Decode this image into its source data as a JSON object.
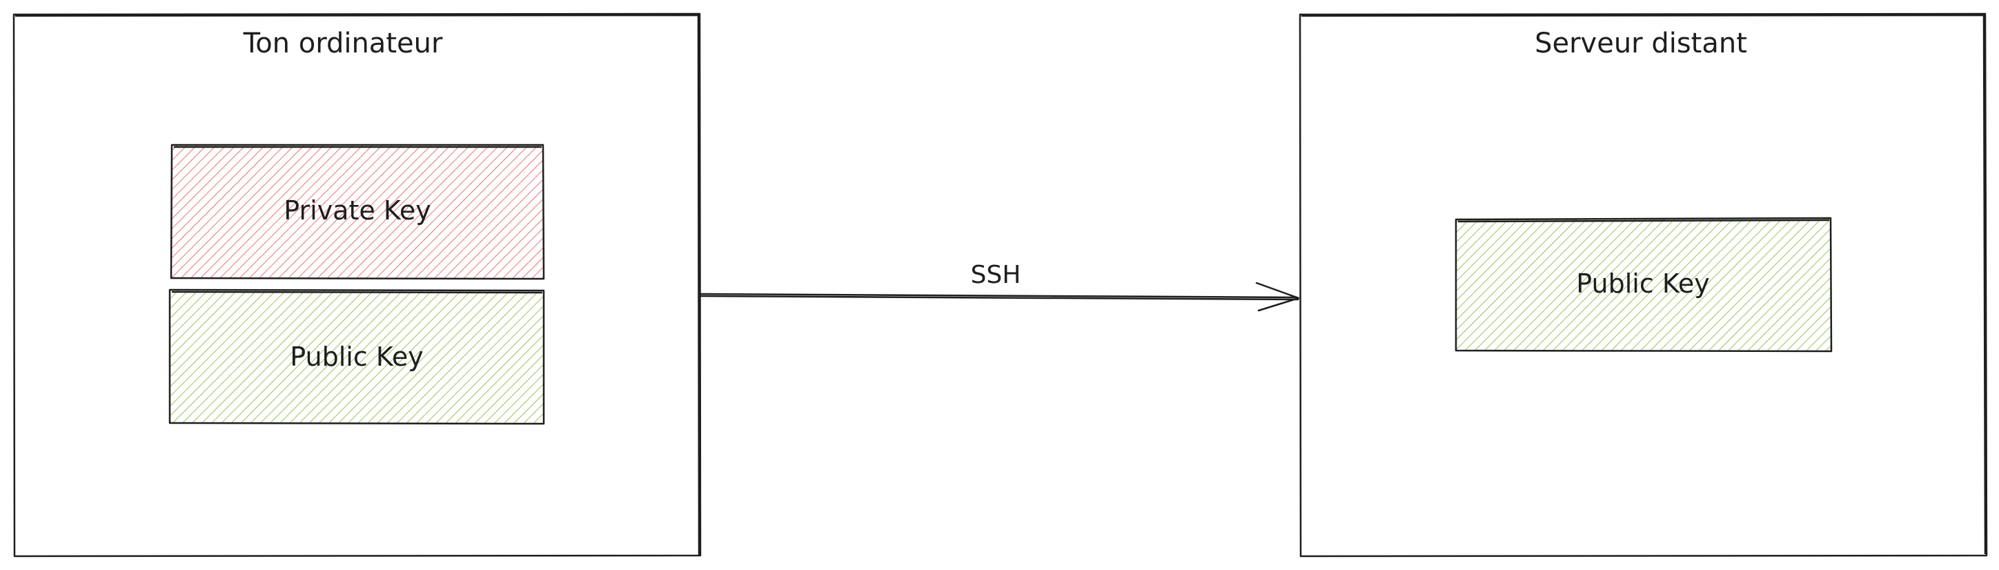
{
  "diagram": {
    "nodes": {
      "local": {
        "title": "Ton ordinateur"
      },
      "remote": {
        "title": "Serveur distant"
      },
      "local_private_key": {
        "label": "Private Key",
        "fill": "#e03131"
      },
      "local_public_key": {
        "label": "Public Key",
        "fill": "#66a80f"
      },
      "remote_public_key": {
        "label": "Public Key",
        "fill": "#66a80f"
      }
    },
    "edges": [
      {
        "from": "local",
        "to": "remote",
        "label": "SSH"
      }
    ],
    "colors": {
      "stroke": "#1e1e1e",
      "private": "#e03131",
      "public": "#66a80f"
    }
  }
}
